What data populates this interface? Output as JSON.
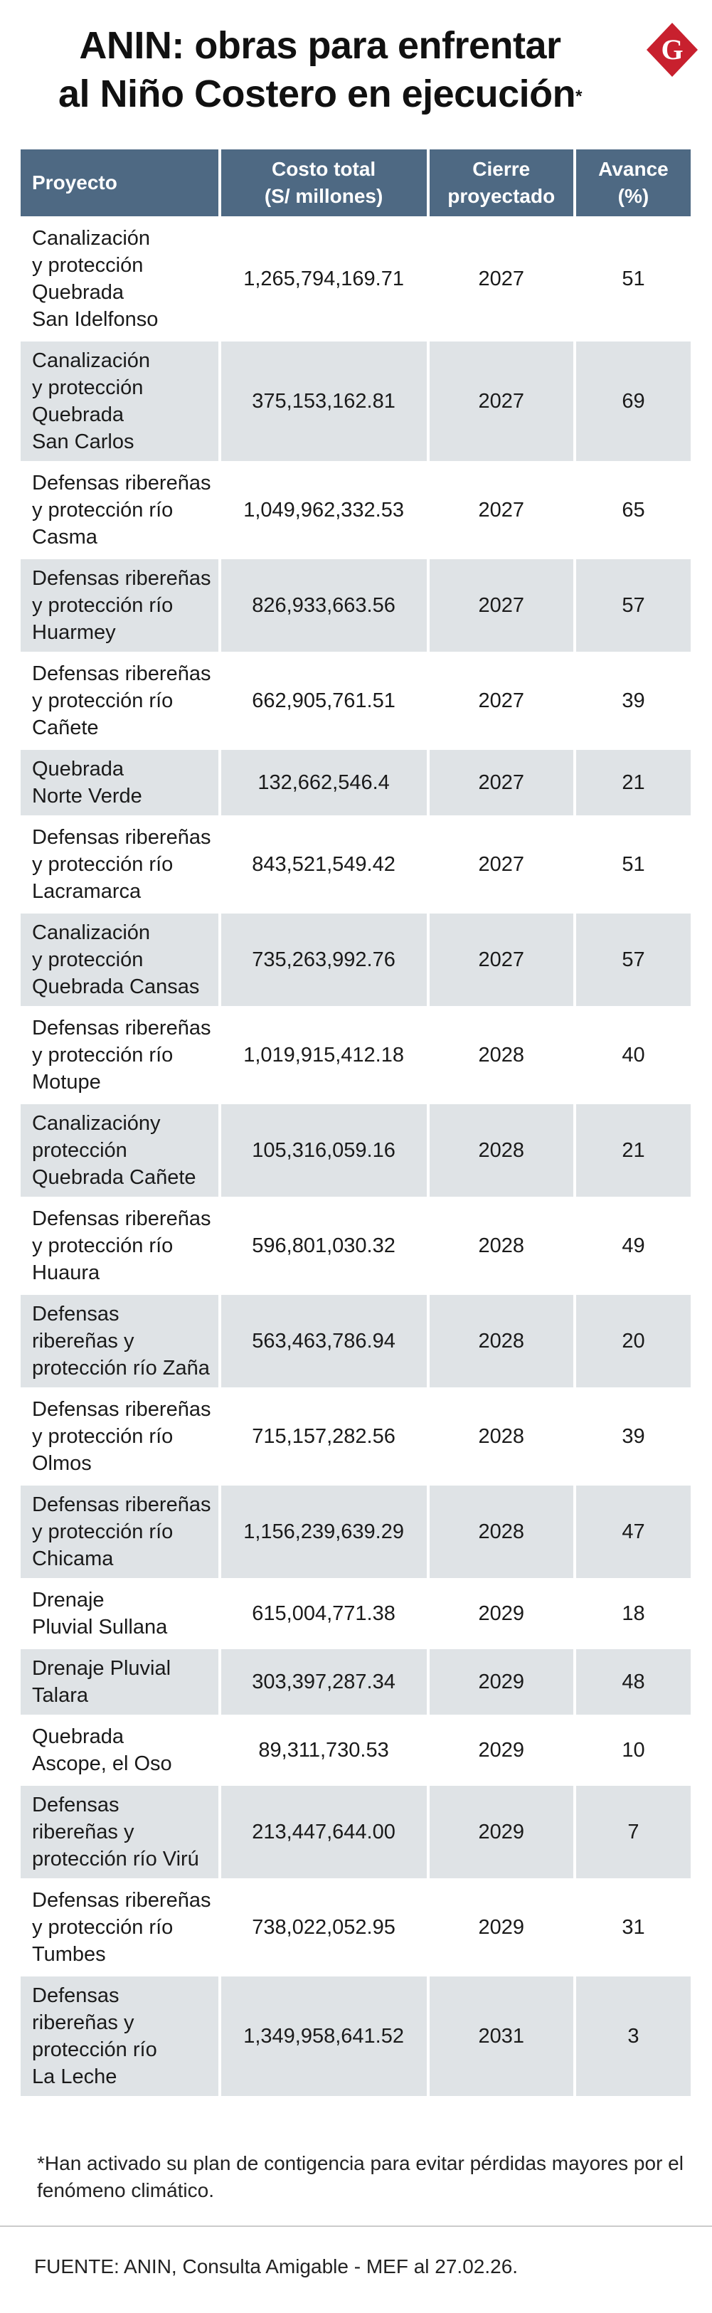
{
  "header": {
    "title_lines": [
      "ANIN: obras para enfrentar",
      "al Niño Costero en ejecución"
    ],
    "title_mark": "*",
    "logo": "G"
  },
  "table": {
    "columns": [
      "Proyecto",
      "Costo total\n(S/ millones)",
      "Cierre\nproyectado",
      "Avance\n(%)"
    ],
    "rows": [
      [
        "Canalización\ny protección\nQuebrada\nSan Idelfonso",
        "1,265,794,169.71",
        2027,
        51
      ],
      [
        "Canalización\ny protección\nQuebrada\nSan Carlos",
        "375,153,162.81",
        2027,
        69
      ],
      [
        "Defensas ribereñas\ny protección río\nCasma",
        "1,049,962,332.53",
        2027,
        65
      ],
      [
        "Defensas ribereñas\ny protección río\nHuarmey",
        "826,933,663.56",
        2027,
        57
      ],
      [
        "Defensas ribereñas\ny protección río\nCañete",
        "662,905,761.51",
        2027,
        39
      ],
      [
        "Quebrada\nNorte Verde",
        "132,662,546.4",
        2027,
        21
      ],
      [
        "Defensas ribereñas\ny protección río\nLacramarca",
        "843,521,549.42",
        2027,
        51
      ],
      [
        "Canalización\ny protección\nQuebrada Cansas",
        "735,263,992.76",
        2027,
        57
      ],
      [
        "Defensas ribereñas\ny protección río\nMotupe",
        "1,019,915,412.18",
        2028,
        40
      ],
      [
        "Canalizacióny\nprotección\nQuebrada Cañete",
        "105,316,059.16",
        2028,
        21
      ],
      [
        "Defensas ribereñas\ny protección río\nHuaura",
        "596,801,030.32",
        2028,
        49
      ],
      [
        "Defensas\nribereñas y\nprotección río Zaña",
        "563,463,786.94",
        2028,
        20
      ],
      [
        "Defensas ribereñas\ny protección río\nOlmos",
        "715,157,282.56",
        2028,
        39
      ],
      [
        "Defensas ribereñas\ny protección río\nChicama",
        "1,156,239,639.29",
        2028,
        47
      ],
      [
        "Drenaje\nPluvial Sullana",
        "615,004,771.38",
        2029,
        18
      ],
      [
        "Drenaje Pluvial\nTalara",
        "303,397,287.34",
        2029,
        48
      ],
      [
        "Quebrada\nAscope, el Oso",
        "89,311,730.53",
        2029,
        10
      ],
      [
        "Defensas\nribereñas y\nprotección río Virú",
        "213,447,644.00",
        2029,
        7
      ],
      [
        "Defensas ribereñas\ny protección río\nTumbes",
        "738,022,052.95",
        2029,
        31
      ],
      [
        "Defensas\nribereñas y\nprotección río\nLa Leche",
        "1,349,958,641.52",
        2031,
        3
      ]
    ]
  },
  "footer": {
    "note": "*Han activado su plan de contigencia para evitar pérdidas mayores por el fenómeno climático.",
    "source": "FUENTE: ANIN, Consulta Amigable - MEF al 27.02.26."
  }
}
